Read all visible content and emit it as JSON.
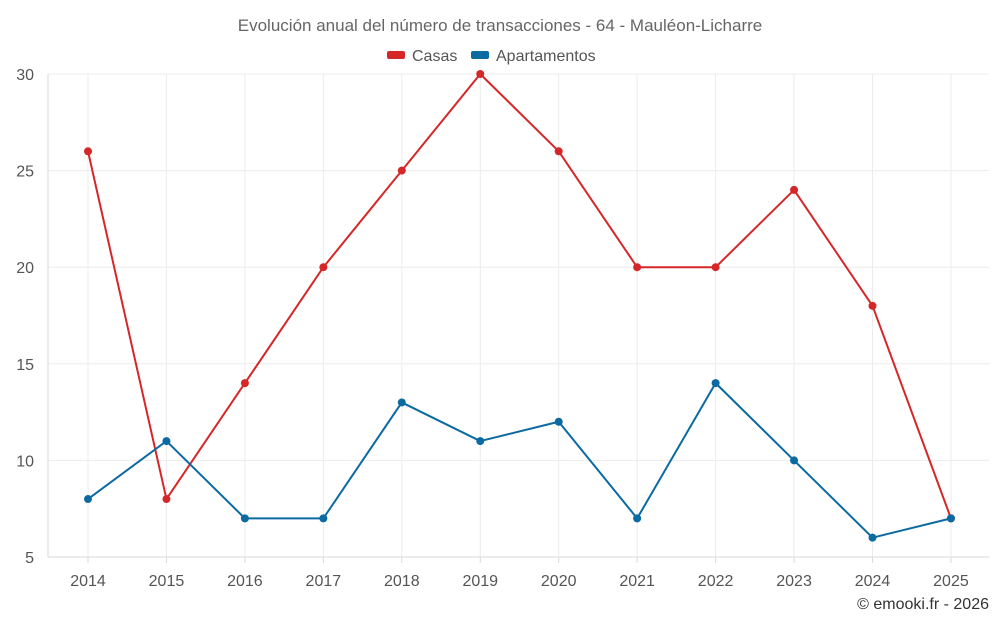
{
  "chart_data": {
    "type": "line",
    "title": "Evolución anual del número de transacciones - 64 - Mauléon-Licharre",
    "xlabel": "",
    "ylabel": "",
    "categories": [
      "2014",
      "2015",
      "2016",
      "2017",
      "2018",
      "2019",
      "2020",
      "2021",
      "2022",
      "2023",
      "2024",
      "2025"
    ],
    "ylim": [
      5,
      30
    ],
    "yticks": [
      5,
      10,
      15,
      20,
      25,
      30
    ],
    "grid": true,
    "legend_position": "top-center",
    "series": [
      {
        "name": "Casas",
        "color": "#d62728",
        "values": [
          26,
          8,
          14,
          20,
          25,
          30,
          26,
          20,
          20,
          24,
          18,
          7
        ]
      },
      {
        "name": "Apartamentos",
        "color": "#0b6aa2",
        "values": [
          8,
          11,
          7,
          7,
          13,
          11,
          12,
          7,
          14,
          10,
          6,
          7
        ]
      }
    ],
    "credit": "© emooki.fr - 2026"
  }
}
